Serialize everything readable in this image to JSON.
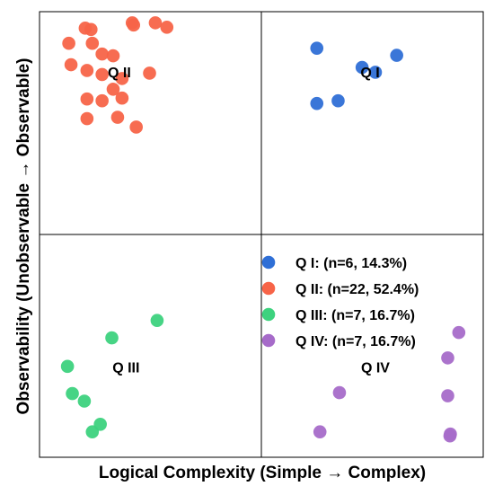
{
  "chart_data": {
    "type": "scatter",
    "title": "",
    "xlabel": "Logical Complexity (Simple → Complex)",
    "ylabel": "Observability (Unobservable → Observable)",
    "xlim": [
      0,
      1
    ],
    "ylim": [
      0,
      1
    ],
    "grid": false,
    "quadrant_divider": {
      "x": 0.5,
      "y": 0.5
    },
    "legend_position": "inside-bottom-right",
    "quadrant_labels": [
      {
        "text": "Q I",
        "x": 0.745,
        "y": 0.865
      },
      {
        "text": "Q II",
        "x": 0.18,
        "y": 0.865
      },
      {
        "text": "Q III",
        "x": 0.195,
        "y": 0.203
      },
      {
        "text": "Q IV",
        "x": 0.757,
        "y": 0.203
      }
    ],
    "series": [
      {
        "name": "Q I: (n=6, 14.3%)",
        "color": "#2F6FD6",
        "points": [
          {
            "x": 0.625,
            "y": 0.918
          },
          {
            "x": 0.727,
            "y": 0.875
          },
          {
            "x": 0.757,
            "y": 0.864
          },
          {
            "x": 0.805,
            "y": 0.902
          },
          {
            "x": 0.625,
            "y": 0.794
          },
          {
            "x": 0.673,
            "y": 0.8
          }
        ]
      },
      {
        "name": "Q II: (n=22, 52.4%)",
        "color": "#F76448",
        "points": [
          {
            "x": 0.103,
            "y": 0.963
          },
          {
            "x": 0.116,
            "y": 0.96
          },
          {
            "x": 0.209,
            "y": 0.975
          },
          {
            "x": 0.212,
            "y": 0.97
          },
          {
            "x": 0.261,
            "y": 0.975
          },
          {
            "x": 0.287,
            "y": 0.965
          },
          {
            "x": 0.066,
            "y": 0.929
          },
          {
            "x": 0.119,
            "y": 0.929
          },
          {
            "x": 0.141,
            "y": 0.905
          },
          {
            "x": 0.166,
            "y": 0.901
          },
          {
            "x": 0.071,
            "y": 0.881
          },
          {
            "x": 0.107,
            "y": 0.868
          },
          {
            "x": 0.141,
            "y": 0.859
          },
          {
            "x": 0.186,
            "y": 0.85
          },
          {
            "x": 0.248,
            "y": 0.862
          },
          {
            "x": 0.166,
            "y": 0.826
          },
          {
            "x": 0.107,
            "y": 0.804
          },
          {
            "x": 0.141,
            "y": 0.8
          },
          {
            "x": 0.186,
            "y": 0.806
          },
          {
            "x": 0.107,
            "y": 0.76
          },
          {
            "x": 0.176,
            "y": 0.763
          },
          {
            "x": 0.218,
            "y": 0.741
          }
        ]
      },
      {
        "name": "Q III: (n=7, 16.7%)",
        "color": "#3DD27E",
        "points": [
          {
            "x": 0.265,
            "y": 0.307
          },
          {
            "x": 0.163,
            "y": 0.268
          },
          {
            "x": 0.063,
            "y": 0.204
          },
          {
            "x": 0.074,
            "y": 0.143
          },
          {
            "x": 0.101,
            "y": 0.126
          },
          {
            "x": 0.137,
            "y": 0.074
          },
          {
            "x": 0.119,
            "y": 0.057
          }
        ]
      },
      {
        "name": "Q IV: (n=7, 16.7%)",
        "color": "#A66BC9",
        "points": [
          {
            "x": 0.945,
            "y": 0.28
          },
          {
            "x": 0.92,
            "y": 0.223
          },
          {
            "x": 0.632,
            "y": 0.057
          },
          {
            "x": 0.676,
            "y": 0.145
          },
          {
            "x": 0.92,
            "y": 0.138
          },
          {
            "x": 0.925,
            "y": 0.048
          },
          {
            "x": 0.926,
            "y": 0.052
          }
        ]
      }
    ]
  }
}
